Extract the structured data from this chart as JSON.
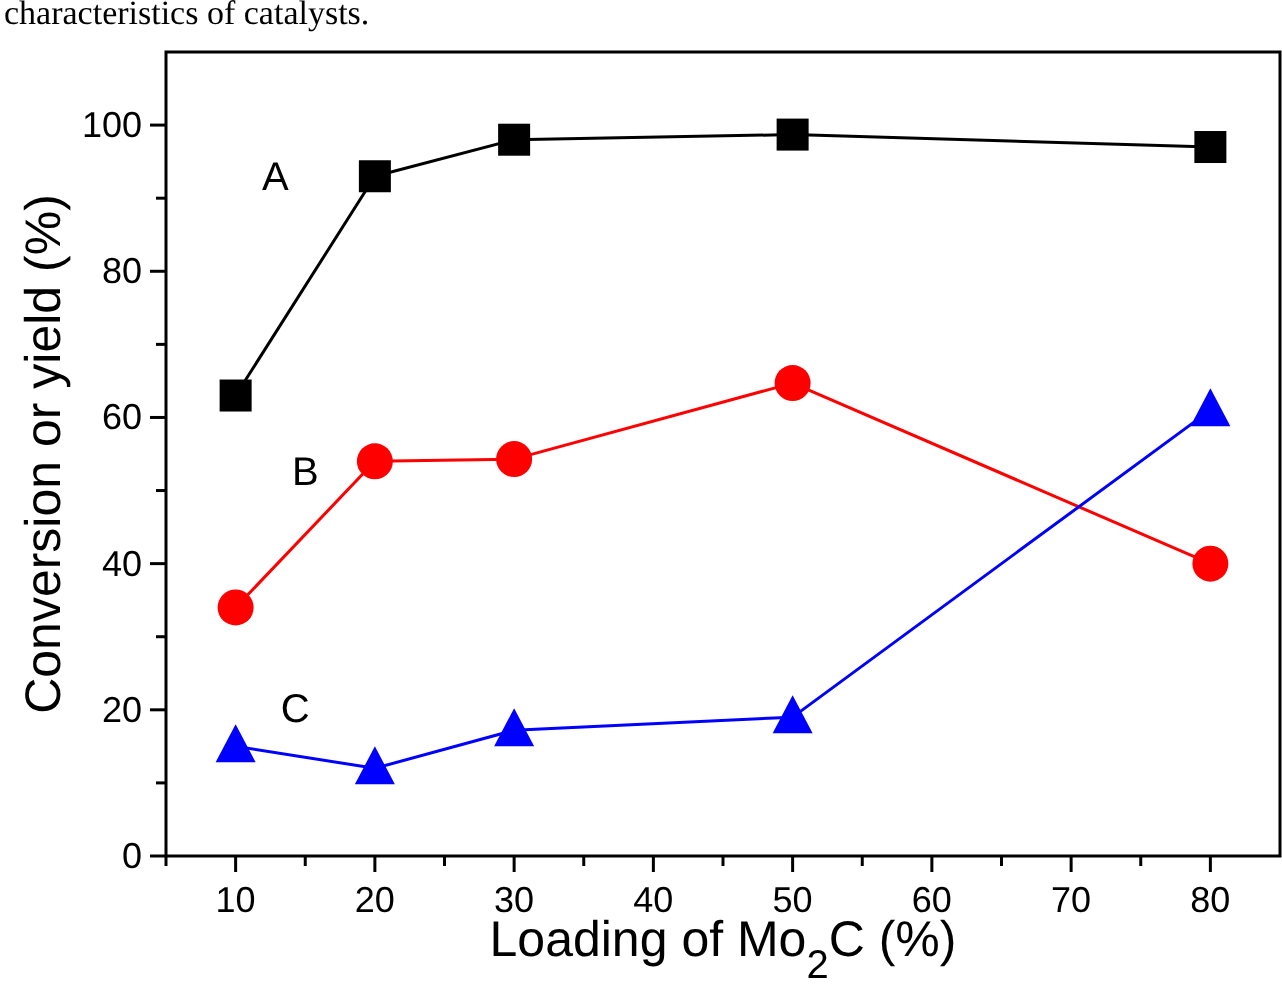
{
  "chart_data": {
    "type": "line",
    "xlabel": "Loading of Mo$_{2}$C (%)",
    "ylabel": "Conversion or yield (%)",
    "annotations": [
      "characteristics of catalysts."
    ],
    "x": [
      10,
      20,
      30,
      50,
      80
    ],
    "series": [
      {
        "name": "A",
        "color": "#000000",
        "marker": "square",
        "values": [
          63,
          93,
          98,
          98.7,
          97
        ]
      },
      {
        "name": "B",
        "color": "#ff0000",
        "marker": "circle",
        "values": [
          34,
          54,
          54.3,
          64.7,
          40
        ]
      },
      {
        "name": "C",
        "color": "#0000ff",
        "marker": "triangle",
        "values": [
          15,
          12,
          17.2,
          19,
          61
        ]
      }
    ],
    "xlim": [
      5,
      85
    ],
    "ylim": [
      0,
      110
    ],
    "xticks": [
      {
        "value": 5,
        "label": null
      },
      10,
      {
        "value": 15,
        "label": null
      },
      20,
      {
        "value": 25,
        "label": null
      },
      30,
      {
        "value": 35,
        "label": null
      },
      40,
      {
        "value": 45,
        "label": null
      },
      50,
      {
        "value": 55,
        "label": null
      },
      60,
      {
        "value": 65,
        "label": null
      },
      70,
      {
        "value": 75,
        "label": null
      },
      80
    ],
    "yticks": [
      0,
      {
        "value": 10,
        "label": null
      },
      20,
      {
        "value": 30,
        "label": null
      },
      40,
      {
        "value": 50,
        "label": null
      },
      60,
      {
        "value": 70,
        "label": null
      },
      80,
      {
        "value": 90,
        "label": null
      },
      100
    ],
    "grid": false,
    "legend": false,
    "line_style": "solid"
  }
}
